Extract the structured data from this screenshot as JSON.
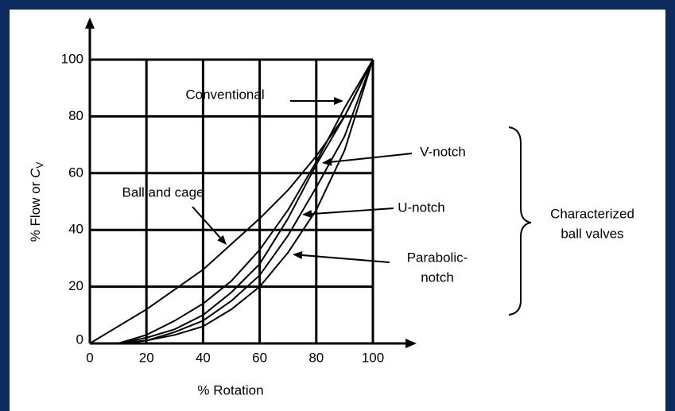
{
  "chart_data": {
    "type": "line",
    "xlabel": "% Rotation",
    "ylabel": [
      "% Flow or ",
      "C",
      "V"
    ],
    "x": [
      0,
      10,
      20,
      30,
      40,
      50,
      60,
      70,
      80,
      90,
      100
    ],
    "series": [
      {
        "name": "Ball and cage",
        "color": "#000000",
        "values": [
          0,
          6,
          12,
          19,
          26,
          35,
          44,
          54,
          66,
          80,
          100
        ]
      },
      {
        "name": "Conventional",
        "color": "#000000",
        "values": [
          null,
          0,
          3,
          8,
          14,
          22,
          33,
          47,
          64,
          83,
          100
        ]
      },
      {
        "name": "V-notch",
        "color": "#000000",
        "values": [
          null,
          0,
          2,
          5,
          10,
          18,
          28,
          44,
          63,
          80,
          100
        ]
      },
      {
        "name": "U-notch",
        "color": "#000000",
        "values": [
          null,
          0,
          1,
          4,
          8,
          15,
          24,
          38,
          55,
          73,
          100
        ]
      },
      {
        "name": "Parabolic-notch",
        "color": "#000000",
        "values": [
          null,
          0,
          1,
          3,
          6,
          12,
          20,
          32,
          47,
          68,
          100
        ]
      }
    ],
    "annotations": [
      {
        "lines": [
          "Conventional"
        ]
      },
      {
        "lines": [
          "V-notch"
        ]
      },
      {
        "lines": [
          "Ball and cage"
        ]
      },
      {
        "lines": [
          "U-notch"
        ]
      },
      {
        "lines": [
          "Parabolic-",
          "notch"
        ]
      },
      {
        "lines": [
          "Characterized",
          "ball valves"
        ]
      }
    ],
    "xlim": [
      0,
      100
    ],
    "xticks": [
      0,
      20,
      40,
      60,
      80,
      100
    ],
    "ylim": [
      0,
      100
    ],
    "yticks": [
      0,
      20,
      40,
      60,
      80,
      100
    ],
    "grid": true
  }
}
